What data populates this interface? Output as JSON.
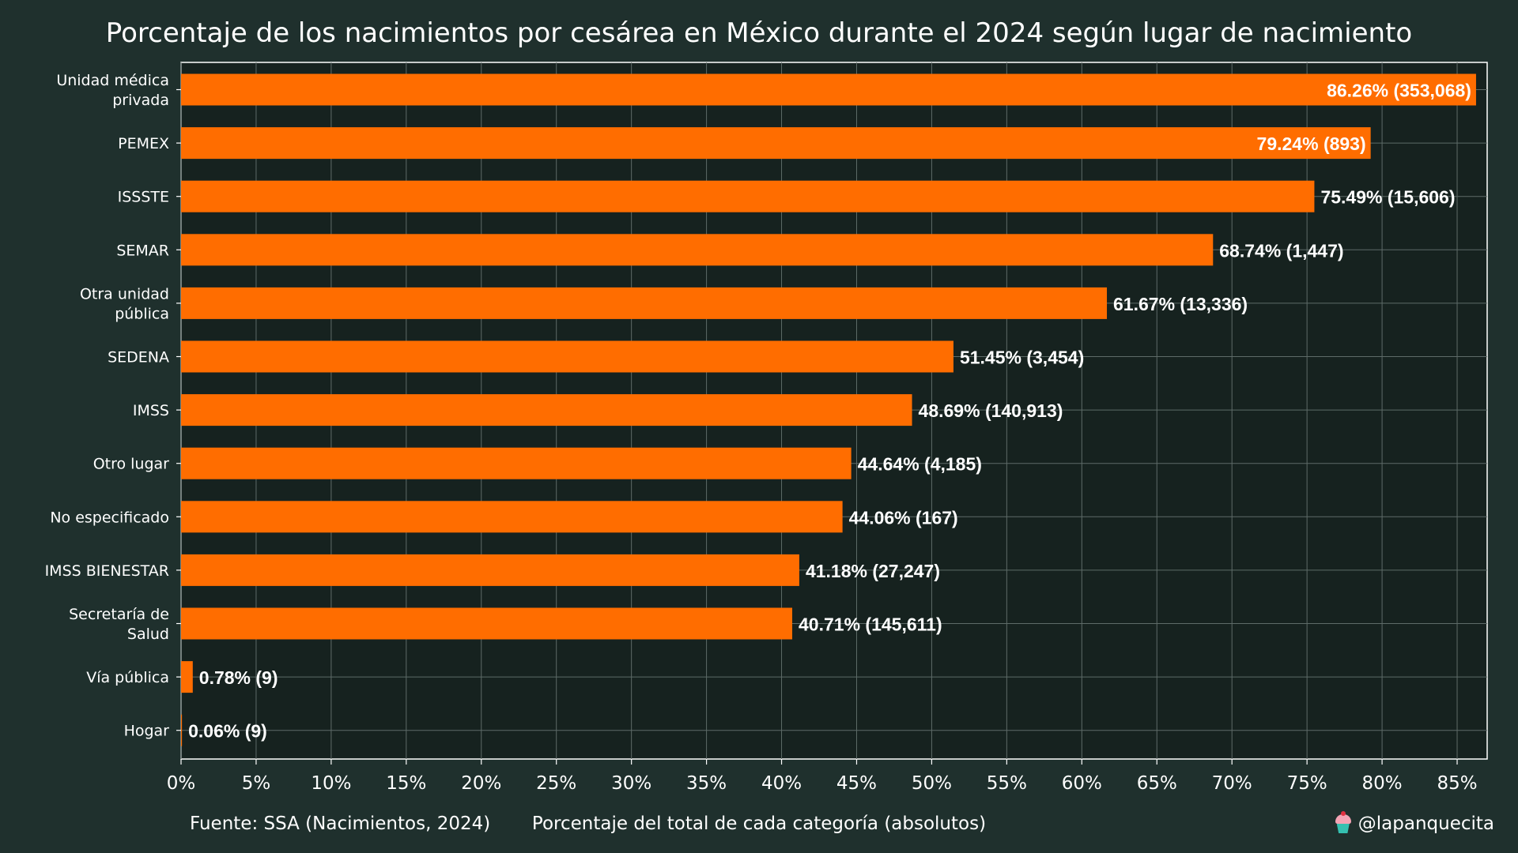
{
  "chart_data": {
    "type": "bar",
    "orientation": "horizontal",
    "title": "Porcentaje de los nacimientos por cesárea en México durante el 2024 según lugar de nacimiento",
    "xlabel": "Porcentaje del total de cada categoría (absolutos)",
    "xlim": [
      0,
      87
    ],
    "xticks": [
      0,
      5,
      10,
      15,
      20,
      25,
      30,
      35,
      40,
      45,
      50,
      55,
      60,
      65,
      70,
      75,
      80,
      85
    ],
    "xtick_labels": [
      "0%",
      "5%",
      "10%",
      "15%",
      "20%",
      "25%",
      "30%",
      "35%",
      "40%",
      "45%",
      "50%",
      "55%",
      "60%",
      "65%",
      "70%",
      "75%",
      "80%",
      "85%"
    ],
    "grid": true,
    "bar_color": "#ff6d00",
    "categories": [
      [
        "Unidad médica",
        "privada"
      ],
      [
        "PEMEX"
      ],
      [
        "ISSSTE"
      ],
      [
        "SEMAR"
      ],
      [
        "Otra unidad",
        "pública"
      ],
      [
        "SEDENA"
      ],
      [
        "IMSS"
      ],
      [
        "Otro lugar"
      ],
      [
        "No especificado"
      ],
      [
        "IMSS BIENESTAR"
      ],
      [
        "Secretaría de",
        "Salud"
      ],
      [
        "Vía pública"
      ],
      [
        "Hogar"
      ]
    ],
    "values": [
      86.26,
      79.24,
      75.49,
      68.74,
      61.67,
      51.45,
      48.69,
      44.64,
      44.06,
      41.18,
      40.71,
      0.78,
      0.06
    ],
    "data_labels": [
      "86.26% (353,068)",
      "79.24% (893)",
      "75.49% (15,606)",
      "68.74% (1,447)",
      "61.67% (13,336)",
      "51.45% (3,454)",
      "48.69% (140,913)",
      "44.64% (4,185)",
      "44.06% (167)",
      "41.18% (27,247)",
      "40.71% (145,611)",
      "0.78% (9)",
      "0.06% (9)"
    ]
  },
  "footer": {
    "source": "Fuente: SSA (Nacimientos, 2024)",
    "credit": "@lapanquecita",
    "credit_icon": "cupcake-icon"
  },
  "colors": {
    "background": "#1f302d",
    "plot_background": "#16221f",
    "bar": "#ff6d00",
    "text": "#ffffff"
  }
}
